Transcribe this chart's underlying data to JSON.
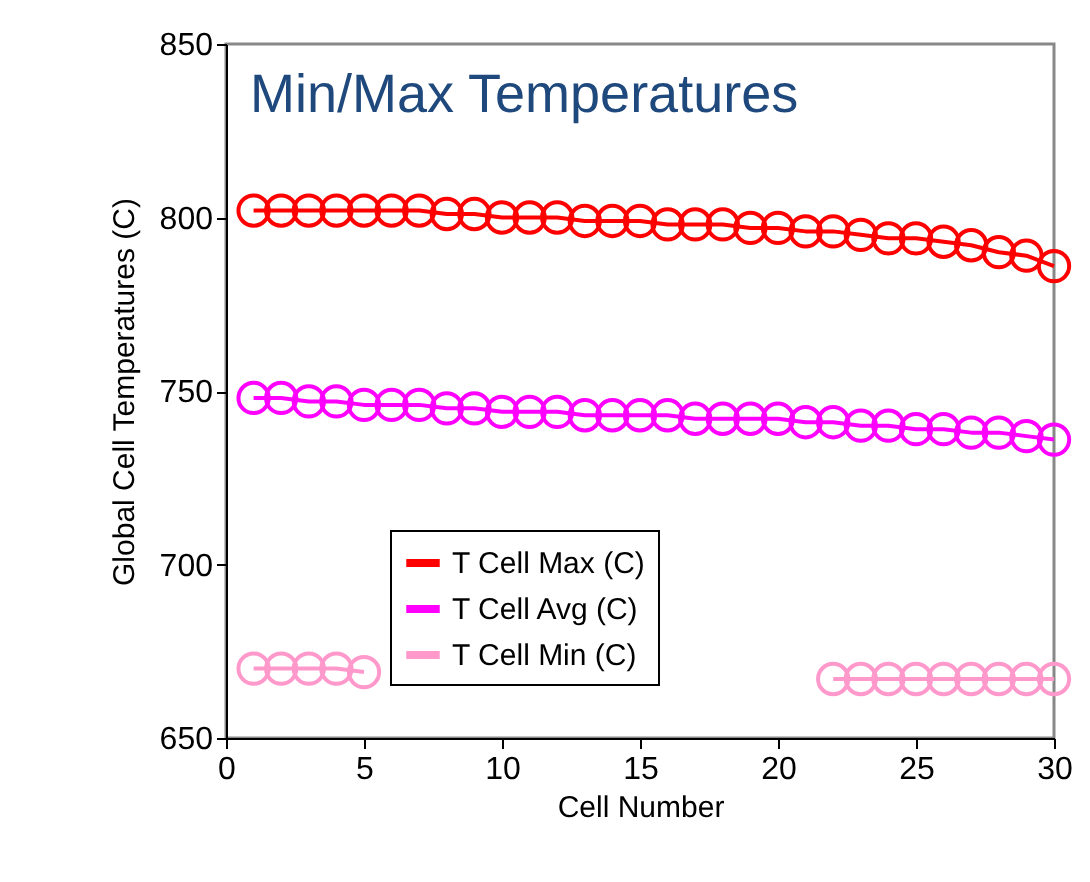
{
  "chart_data": {
    "type": "line",
    "title": "Min/Max Temperatures",
    "xlabel": "Cell Number",
    "ylabel": "Global Cell Temperatures (C)",
    "x": [
      1,
      2,
      3,
      4,
      5,
      6,
      7,
      8,
      9,
      10,
      11,
      12,
      13,
      14,
      15,
      16,
      17,
      18,
      19,
      20,
      21,
      22,
      23,
      24,
      25,
      26,
      27,
      28,
      29,
      30
    ],
    "series": [
      {
        "name": "T Cell Max (C)",
        "color": "#ff0000",
        "values": [
          802,
          802,
          802,
          802,
          802,
          802,
          802,
          801,
          801,
          800,
          800,
          800,
          799,
          799,
          799,
          798,
          798,
          798,
          797,
          797,
          796,
          796,
          795,
          794,
          794,
          793,
          792,
          790,
          789,
          786
        ]
      },
      {
        "name": "T Cell Avg (C)",
        "color": "#ff00ff",
        "values": [
          748,
          748,
          747,
          747,
          746,
          746,
          746,
          745,
          745,
          744,
          744,
          744,
          743,
          743,
          743,
          743,
          742,
          742,
          742,
          742,
          741,
          741,
          740,
          740,
          739,
          739,
          738,
          738,
          737,
          736
        ]
      },
      {
        "name": "T Cell Min (C)",
        "color": "#ff99cc",
        "values": [
          670,
          670,
          670,
          670,
          669,
          null,
          null,
          null,
          null,
          null,
          null,
          null,
          null,
          null,
          null,
          null,
          null,
          null,
          null,
          null,
          null,
          667,
          667,
          667,
          667,
          667,
          667,
          667,
          667,
          667
        ]
      }
    ],
    "xlim": [
      0,
      30
    ],
    "xticks": [
      0,
      5,
      10,
      15,
      20,
      25,
      30
    ],
    "ylim": [
      650,
      850
    ],
    "yticks": [
      650,
      700,
      750,
      800,
      850
    ],
    "grid": false,
    "legend": "bottom",
    "marker": "circle",
    "line_style": "solid"
  }
}
